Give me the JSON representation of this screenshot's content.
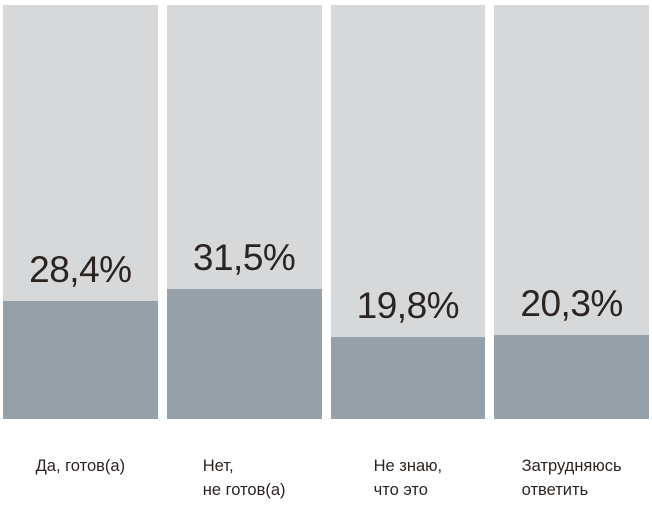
{
  "page": {
    "background": "#ffffff"
  },
  "chart_data": {
    "type": "bar",
    "subtype": "percentage-filled-columns",
    "orientation": "vertical",
    "categories": [
      "Да, готов(а)",
      "Нет,\nне готов(а)",
      "Не знаю,\nчто это",
      "Затрудняюсь\nответить"
    ],
    "values": [
      28.4,
      31.5,
      19.8,
      20.3
    ],
    "value_labels": [
      "28,4%",
      "31,5%",
      "19,8%",
      "20,3%"
    ],
    "ylim": [
      0,
      100
    ],
    "grid": false,
    "legend": false,
    "axes_visible": false,
    "colors": {
      "track": "#d6d8da",
      "fill": "#96a0a9",
      "text": "#2b2420",
      "page_background": "#ffffff"
    }
  }
}
